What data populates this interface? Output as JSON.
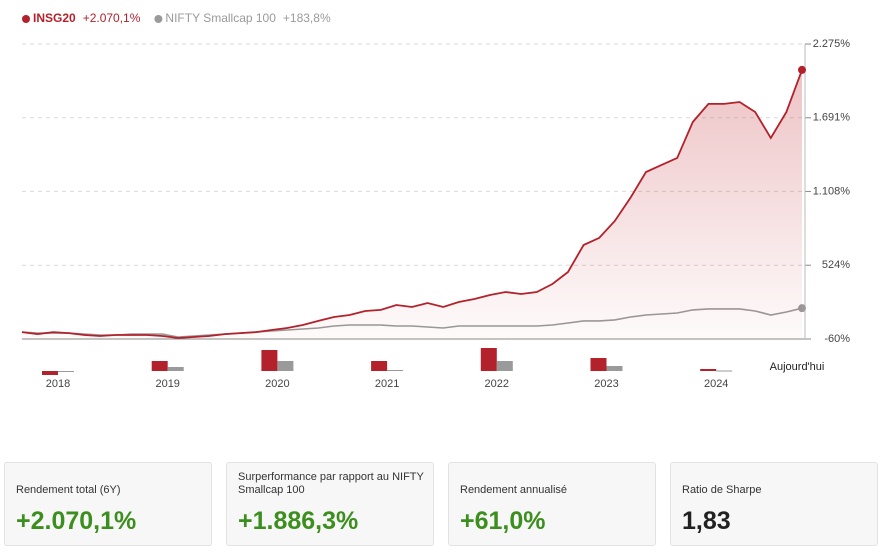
{
  "chart_data": [
    {
      "type": "line",
      "yticks": [
        {
          "value": 2275,
          "label": "2.275%"
        },
        {
          "value": 1691,
          "label": "1.691%"
        },
        {
          "value": 1108,
          "label": "1.108%"
        },
        {
          "value": 524,
          "label": "524%"
        },
        {
          "value": -60,
          "label": "-60%"
        }
      ],
      "ylim": [
        -60,
        2275
      ],
      "grid": true,
      "series": [
        {
          "name": "INSG20",
          "change_label": "+2.070,1%",
          "color": "#b3212b",
          "values": [
            -5,
            -21,
            -5,
            -13,
            -28,
            -36,
            -28,
            -28,
            -28,
            -36,
            -52,
            -44,
            -36,
            -21,
            -13,
            -5,
            11,
            27,
            51,
            83,
            114,
            130,
            162,
            170,
            209,
            193,
            225,
            193,
            233,
            257,
            288,
            312,
            296,
            312,
            375,
            470,
            684,
            740,
            874,
            1057,
            1262,
            1318,
            1373,
            1658,
            1801,
            1801,
            1816,
            1737,
            1531,
            1737,
            2070
          ]
        },
        {
          "name": "NIFTY Smallcap 100",
          "change_label": "+183,8%",
          "color": "#9a9a9a",
          "values": [
            -5,
            -13,
            -13,
            -13,
            -21,
            -28,
            -28,
            -21,
            -21,
            -21,
            -44,
            -36,
            -28,
            -21,
            -13,
            -5,
            3,
            11,
            19,
            27,
            43,
            51,
            51,
            51,
            43,
            43,
            35,
            27,
            43,
            43,
            43,
            43,
            43,
            43,
            51,
            67,
            83,
            83,
            91,
            114,
            130,
            138,
            146,
            170,
            178,
            178,
            178,
            162,
            130,
            154,
            184
          ]
        }
      ]
    },
    {
      "type": "bar",
      "categories": [
        "2018",
        "2019",
        "2020",
        "2021",
        "2022",
        "2023",
        "2024"
      ],
      "end_label": "Aujourd'hui",
      "ylim": [
        -30,
        140
      ],
      "series": [
        {
          "name": "INSG20",
          "color": "#b3212b",
          "values": [
            -24,
            60,
            126,
            60,
            138,
            78,
            12
          ]
        },
        {
          "name": "NIFTY Smallcap 100",
          "color": "#9a9a9a",
          "values": [
            -6,
            24,
            60,
            6,
            60,
            30,
            3
          ]
        }
      ]
    }
  ],
  "stats": [
    {
      "label": "Rendement total (6Y)",
      "value": "+2.070,1%"
    },
    {
      "label": "Surperformance par rapport au NIFTY Smallcap 100",
      "value": "+1.886,3%"
    },
    {
      "label": "Rendement annualisé",
      "value": "+61,0%"
    },
    {
      "label": "Ratio de Sharpe",
      "value": "1,83"
    }
  ]
}
